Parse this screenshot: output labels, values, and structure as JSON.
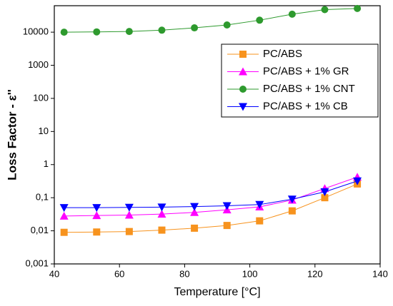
{
  "chart_data": {
    "type": "line",
    "x_label": "Temperature [°C]",
    "y_label": "Loss Factor - ε''",
    "x": [
      43,
      53,
      63,
      73,
      83,
      93,
      103,
      113,
      123,
      133
    ],
    "xlim": [
      40,
      140
    ],
    "xticks": [
      40,
      60,
      80,
      100,
      120,
      140
    ],
    "ylim": [
      0.001,
      63000
    ],
    "ylog": true,
    "yticks": [
      {
        "value": 0.001,
        "label": "0,001"
      },
      {
        "value": 0.01,
        "label": "0,01"
      },
      {
        "value": 0.1,
        "label": "0,1"
      },
      1,
      10,
      100,
      1000,
      10000
    ],
    "legend": "upper right",
    "series": [
      {
        "name": "PC/ABS",
        "color": "#f7931e",
        "marker": "square",
        "values": [
          0.009,
          0.0092,
          0.0095,
          0.0105,
          0.012,
          0.0145,
          0.02,
          0.04,
          0.1,
          0.26
        ]
      },
      {
        "name": "PC/ABS + 1% GR",
        "color": "#ff00ff",
        "marker": "triangle-up",
        "values": [
          0.028,
          0.029,
          0.03,
          0.032,
          0.036,
          0.043,
          0.053,
          0.085,
          0.19,
          0.42
        ]
      },
      {
        "name": "PC/ABS + 1% CNT",
        "color": "#2e9a2e",
        "marker": "circle",
        "values": [
          10000,
          10200,
          10500,
          11500,
          13500,
          16500,
          23000,
          35000,
          48000,
          52000
        ]
      },
      {
        "name": "PC/ABS + 1% CB",
        "color": "#0000ff",
        "marker": "triangle-down",
        "values": [
          0.05,
          0.05,
          0.051,
          0.052,
          0.054,
          0.057,
          0.062,
          0.09,
          0.15,
          0.32
        ]
      }
    ]
  }
}
